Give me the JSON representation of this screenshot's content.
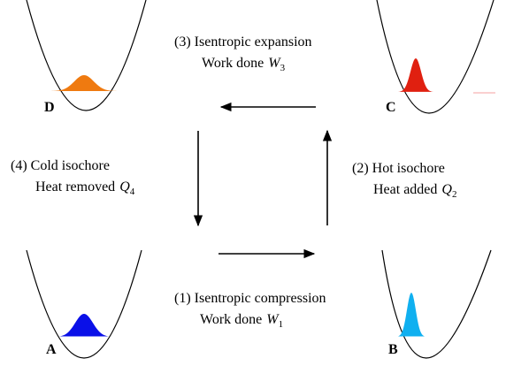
{
  "states": [
    {
      "label": "D"
    },
    {
      "label": "C"
    },
    {
      "label": "A"
    },
    {
      "label": "B"
    }
  ],
  "processes": [
    {
      "line1": "(3) Isentropic expansion",
      "line2": "Work done",
      "symbol": "W",
      "subscript": "3"
    },
    {
      "line1": "(4) Cold isochore",
      "line2": "Heat removed",
      "symbol": "Q",
      "subscript": "4"
    },
    {
      "line1": "(2) Hot isochore",
      "line2": "Heat added",
      "symbol": "Q",
      "subscript": "2"
    },
    {
      "line1": "(1) Isentropic compression",
      "line2": "Work done",
      "symbol": "W",
      "subscript": "1"
    }
  ]
}
